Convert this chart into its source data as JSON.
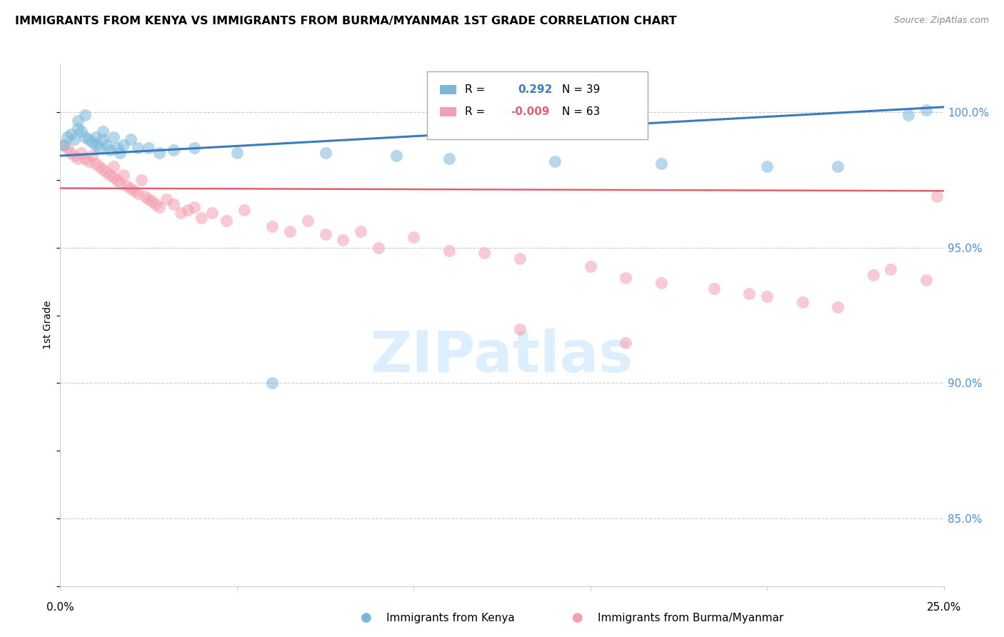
{
  "title": "IMMIGRANTS FROM KENYA VS IMMIGRANTS FROM BURMA/MYANMAR 1ST GRADE CORRELATION CHART",
  "source": "Source: ZipAtlas.com",
  "ylabel": "1st Grade",
  "kenya_color": "#7ab8d9",
  "burma_color": "#f4a0b0",
  "kenya_line_color": "#3a7bbf",
  "burma_line_color": "#e06070",
  "watermark_color": "#ddeeff",
  "right_axis_color": "#4a90d9",
  "ylim_low": 0.825,
  "ylim_high": 1.018,
  "xlim_low": 0.0,
  "xlim_high": 0.25,
  "kenya_points_x": [
    0.001,
    0.002,
    0.003,
    0.004,
    0.005,
    0.005,
    0.006,
    0.007,
    0.007,
    0.008,
    0.009,
    0.01,
    0.01,
    0.011,
    0.012,
    0.012,
    0.013,
    0.014,
    0.015,
    0.016,
    0.017,
    0.018,
    0.02,
    0.022,
    0.025,
    0.028,
    0.032,
    0.038,
    0.05,
    0.06,
    0.075,
    0.095,
    0.11,
    0.14,
    0.17,
    0.2,
    0.22,
    0.24,
    0.245
  ],
  "kenya_points_y": [
    0.988,
    0.991,
    0.992,
    0.99,
    0.994,
    0.997,
    0.993,
    0.991,
    0.999,
    0.99,
    0.989,
    0.988,
    0.991,
    0.987,
    0.993,
    0.99,
    0.988,
    0.986,
    0.991,
    0.987,
    0.985,
    0.988,
    0.99,
    0.987,
    0.987,
    0.985,
    0.986,
    0.987,
    0.985,
    0.9,
    0.985,
    0.984,
    0.983,
    0.982,
    0.981,
    0.98,
    0.98,
    0.999,
    1.001
  ],
  "burma_points_x": [
    0.001,
    0.002,
    0.003,
    0.004,
    0.005,
    0.006,
    0.007,
    0.008,
    0.009,
    0.01,
    0.011,
    0.012,
    0.013,
    0.014,
    0.015,
    0.015,
    0.016,
    0.017,
    0.018,
    0.019,
    0.02,
    0.021,
    0.022,
    0.023,
    0.024,
    0.025,
    0.026,
    0.027,
    0.028,
    0.03,
    0.032,
    0.034,
    0.036,
    0.038,
    0.04,
    0.043,
    0.047,
    0.052,
    0.06,
    0.065,
    0.07,
    0.075,
    0.08,
    0.085,
    0.09,
    0.1,
    0.11,
    0.12,
    0.13,
    0.15,
    0.16,
    0.17,
    0.185,
    0.195,
    0.2,
    0.21,
    0.22,
    0.23,
    0.235,
    0.245,
    0.13,
    0.16,
    0.248
  ],
  "burma_points_y": [
    0.988,
    0.987,
    0.985,
    0.984,
    0.983,
    0.985,
    0.983,
    0.982,
    0.984,
    0.981,
    0.98,
    0.979,
    0.978,
    0.977,
    0.976,
    0.98,
    0.975,
    0.974,
    0.977,
    0.973,
    0.972,
    0.971,
    0.97,
    0.975,
    0.969,
    0.968,
    0.967,
    0.966,
    0.965,
    0.968,
    0.966,
    0.963,
    0.964,
    0.965,
    0.961,
    0.963,
    0.96,
    0.964,
    0.958,
    0.956,
    0.96,
    0.955,
    0.953,
    0.956,
    0.95,
    0.954,
    0.949,
    0.948,
    0.946,
    0.943,
    0.939,
    0.937,
    0.935,
    0.933,
    0.932,
    0.93,
    0.928,
    0.94,
    0.942,
    0.938,
    0.92,
    0.915,
    0.969
  ],
  "kenya_line_x0": 0.0,
  "kenya_line_x1": 0.25,
  "kenya_line_y0": 0.984,
  "kenya_line_y1": 1.002,
  "burma_line_x0": 0.0,
  "burma_line_x1": 0.25,
  "burma_line_y0": 0.972,
  "burma_line_y1": 0.971,
  "legend_R_kenya": "R =",
  "legend_val_kenya": "0.292",
  "legend_N_kenya": "N = 39",
  "legend_R_burma": "R =",
  "legend_val_burma": "-0.009",
  "legend_N_burma": "N = 63"
}
